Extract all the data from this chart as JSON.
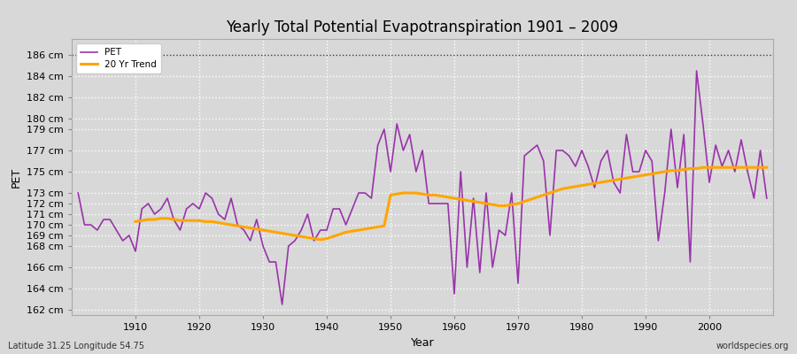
{
  "title": "Yearly Total Potential Evapotranspiration 1901 – 2009",
  "xlabel": "Year",
  "ylabel": "PET",
  "subtitle": "Latitude 31.25 Longitude 54.75",
  "watermark": "worldspecies.org",
  "pet_color": "#9933AA",
  "trend_color": "#FFA500",
  "background_color": "#d8d8d8",
  "plot_bg_color": "#d8d8d8",
  "ylim": [
    161.5,
    187.5
  ],
  "ytick_vals": [
    162,
    164,
    166,
    168,
    169,
    170,
    171,
    172,
    173,
    175,
    177,
    179,
    180,
    182,
    184,
    186
  ],
  "ytick_labels": [
    "162 cm",
    "164 cm",
    "166 cm",
    "168 cm",
    "169 cm",
    "170 cm",
    "171 cm",
    "172 cm",
    "173 cm",
    "175 cm",
    "177 cm",
    "179 cm",
    "180 cm",
    "182 cm",
    "184 cm",
    "186 cm"
  ],
  "xlim": [
    1900,
    2010
  ],
  "xtick_vals": [
    1910,
    1920,
    1930,
    1940,
    1950,
    1960,
    1970,
    1980,
    1990,
    2000
  ],
  "years": [
    1901,
    1902,
    1903,
    1904,
    1905,
    1906,
    1907,
    1908,
    1909,
    1910,
    1911,
    1912,
    1913,
    1914,
    1915,
    1916,
    1917,
    1918,
    1919,
    1920,
    1921,
    1922,
    1923,
    1924,
    1925,
    1926,
    1927,
    1928,
    1929,
    1930,
    1931,
    1932,
    1933,
    1934,
    1935,
    1936,
    1937,
    1938,
    1939,
    1940,
    1941,
    1942,
    1943,
    1944,
    1945,
    1946,
    1947,
    1948,
    1949,
    1950,
    1951,
    1952,
    1953,
    1954,
    1955,
    1956,
    1957,
    1958,
    1959,
    1960,
    1961,
    1962,
    1963,
    1964,
    1965,
    1966,
    1967,
    1968,
    1969,
    1970,
    1971,
    1972,
    1973,
    1974,
    1975,
    1976,
    1977,
    1978,
    1979,
    1980,
    1981,
    1982,
    1983,
    1984,
    1985,
    1986,
    1987,
    1988,
    1989,
    1990,
    1991,
    1992,
    1993,
    1994,
    1995,
    1996,
    1997,
    1998,
    1999,
    2000,
    2001,
    2002,
    2003,
    2004,
    2005,
    2006,
    2007,
    2008,
    2009
  ],
  "pet": [
    173.0,
    170.0,
    170.0,
    169.5,
    170.5,
    170.5,
    169.5,
    168.5,
    169.0,
    167.5,
    171.5,
    172.0,
    171.0,
    171.5,
    172.5,
    170.5,
    169.5,
    171.5,
    172.0,
    171.5,
    173.0,
    172.5,
    171.0,
    170.5,
    172.5,
    170.0,
    169.5,
    168.5,
    170.5,
    168.0,
    166.5,
    166.5,
    162.5,
    168.0,
    168.5,
    169.5,
    171.0,
    168.5,
    169.5,
    169.5,
    171.5,
    171.5,
    170.0,
    171.5,
    173.0,
    173.0,
    172.5,
    177.5,
    179.0,
    175.0,
    179.5,
    177.0,
    178.5,
    175.0,
    177.0,
    172.0,
    172.0,
    172.0,
    172.0,
    163.5,
    175.0,
    166.0,
    172.5,
    165.5,
    173.0,
    166.0,
    169.5,
    169.0,
    173.0,
    164.5,
    176.5,
    177.0,
    177.5,
    176.0,
    169.0,
    177.0,
    177.0,
    176.5,
    175.5,
    177.0,
    175.5,
    173.5,
    176.0,
    177.0,
    174.0,
    173.0,
    178.5,
    175.0,
    175.0,
    177.0,
    176.0,
    168.5,
    173.0,
    179.0,
    173.5,
    178.5,
    166.5,
    184.5,
    179.5,
    174.0,
    177.5,
    175.5,
    177.0,
    175.0,
    178.0,
    175.0,
    172.5,
    177.0,
    172.5
  ],
  "trend_years": [
    1910,
    1911,
    1912,
    1913,
    1914,
    1915,
    1916,
    1917,
    1918,
    1919,
    1920,
    1921,
    1922,
    1923,
    1924,
    1925,
    1926,
    1927,
    1928,
    1929,
    1930,
    1931,
    1932,
    1933,
    1934,
    1935,
    1936,
    1937,
    1938,
    1939,
    1940,
    1941,
    1942,
    1943,
    1944,
    1945,
    1946,
    1947,
    1948,
    1949,
    1950,
    1951,
    1952,
    1953,
    1954,
    1955,
    1956,
    1957,
    1958,
    1959,
    1960,
    1961,
    1962,
    1963,
    1964,
    1965,
    1966,
    1967,
    1968,
    1969,
    1970,
    1971,
    1972,
    1973,
    1974,
    1975,
    1976,
    1977,
    1978,
    1979,
    1980,
    1981,
    1982,
    1983,
    1984,
    1985,
    1986,
    1987,
    1988,
    1989,
    1990,
    1991,
    1992,
    1993,
    1994,
    1995,
    1996,
    1997,
    1998,
    1999,
    2000,
    2001,
    2002,
    2003,
    2004,
    2005,
    2006,
    2007,
    2008,
    2009
  ],
  "trend": [
    170.3,
    170.4,
    170.5,
    170.5,
    170.6,
    170.6,
    170.5,
    170.4,
    170.4,
    170.4,
    170.4,
    170.3,
    170.3,
    170.2,
    170.1,
    170.0,
    169.9,
    169.8,
    169.7,
    169.6,
    169.5,
    169.4,
    169.3,
    169.2,
    169.1,
    169.0,
    168.9,
    168.8,
    168.7,
    168.6,
    168.7,
    168.9,
    169.1,
    169.3,
    169.4,
    169.5,
    169.6,
    169.7,
    169.8,
    169.9,
    172.8,
    172.9,
    173.0,
    173.0,
    173.0,
    172.9,
    172.8,
    172.8,
    172.7,
    172.6,
    172.5,
    172.4,
    172.3,
    172.2,
    172.1,
    172.0,
    171.9,
    171.8,
    171.8,
    171.9,
    172.0,
    172.2,
    172.4,
    172.6,
    172.8,
    173.0,
    173.2,
    173.4,
    173.5,
    173.6,
    173.7,
    173.8,
    173.9,
    174.0,
    174.1,
    174.2,
    174.3,
    174.4,
    174.5,
    174.6,
    174.7,
    174.8,
    174.9,
    175.0,
    175.1,
    175.1,
    175.2,
    175.3,
    175.3,
    175.4,
    175.4,
    175.4,
    175.4,
    175.4,
    175.4,
    175.4,
    175.4,
    175.4,
    175.4,
    175.4
  ]
}
